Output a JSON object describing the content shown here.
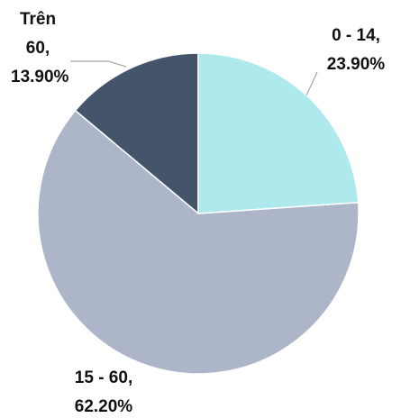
{
  "chart_data": {
    "type": "pie",
    "categories": [
      "0 - 14",
      "15 - 60",
      "Trên 60"
    ],
    "values": [
      23.9,
      62.2,
      13.9
    ],
    "value_labels": [
      "23.90%",
      "62.20%",
      "13.90%"
    ],
    "label_separator": ",",
    "colors": [
      "#aeeaed",
      "#adb6c9",
      "#44546a"
    ]
  }
}
